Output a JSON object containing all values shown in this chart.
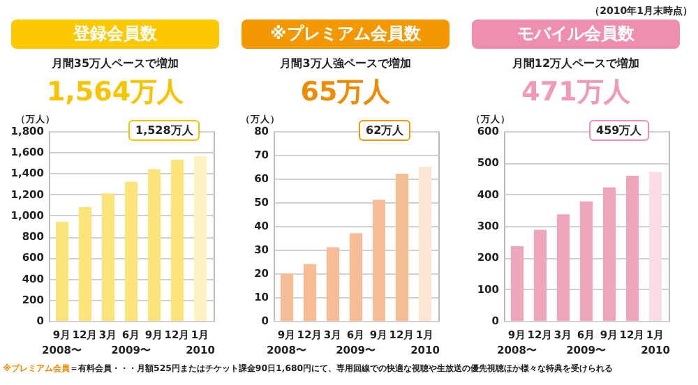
{
  "chart_data": [
    {
      "type": "bar",
      "title": "登録会員数",
      "subtitle": "月間35万人ペースで増加",
      "ylabel": "（万人）",
      "categories": [
        "9月\n2008〜",
        "12月",
        "3月",
        "6月\n2009〜",
        "9月",
        "12月",
        "1月\n2010"
      ],
      "values": [
        940,
        1080,
        1210,
        1320,
        1440,
        1528,
        1564
      ],
      "colors": [
        "#fce37a",
        "#fce37a",
        "#fce37a",
        "#fce37a",
        "#fce37a",
        "#fce37a",
        "#fdf3c2"
      ],
      "ylim": [
        0,
        1800
      ],
      "yticks": [
        0,
        200,
        400,
        600,
        800,
        {
          "value": 1000,
          "label": "1,000"
        },
        {
          "value": 1200,
          "label": "1,200"
        },
        {
          "value": 1400,
          "label": "1,400"
        },
        {
          "value": 1600,
          "label": "1,600"
        },
        {
          "value": 1800,
          "label": "1,800"
        }
      ],
      "grid": "y",
      "annotations": [
        "1,564万人",
        "1,528万人"
      ]
    },
    {
      "type": "bar",
      "title": "※プレミアム会員数",
      "subtitle": "月間3万人強ペースで増加",
      "ylabel": "（万人）",
      "categories": [
        "9月\n2008〜",
        "12月",
        "3月",
        "6月\n2009〜",
        "9月",
        "12月",
        "1月\n2010"
      ],
      "values": [
        20,
        24,
        31,
        37,
        51,
        62,
        65
      ],
      "colors": [
        "#f5bc96",
        "#f5bc96",
        "#f5bc96",
        "#f5bc96",
        "#f5bc96",
        "#f5bc96",
        "#fde7d4"
      ],
      "ylim": [
        0,
        80
      ],
      "yticks": [
        0,
        10,
        20,
        30,
        40,
        50,
        60,
        70,
        80
      ],
      "grid": "y",
      "annotations": [
        "65万人",
        "62万人",
        "※プレミアム会員",
        "＝有料会員・・・月額525円またはチケット課金90日1,680円にて、専用回線での快適な視聴や生放送の優先視聴ほか様々な特典を受けられる"
      ]
    },
    {
      "type": "bar",
      "title": "モバイル会員数",
      "subtitle": "月間12万人ペースで増加",
      "ylabel": "（万人）",
      "categories": [
        "9月\n2008〜",
        "12月",
        "3月",
        "6月\n2009〜",
        "9月",
        "12月",
        "1月\n2010"
      ],
      "values": [
        236,
        288,
        337,
        378,
        422,
        459,
        471
      ],
      "colors": [
        "#eea6bb",
        "#eea6bb",
        "#eea6bb",
        "#eea6bb",
        "#eea6bb",
        "#eea6bb",
        "#f9dde6"
      ],
      "ylim": [
        0,
        600
      ],
      "yticks": [
        0,
        100,
        200,
        300,
        400,
        500,
        600
      ],
      "grid": "y",
      "annotations": [
        "471万人",
        "459万人",
        "（2010年1月末時点）"
      ]
    }
  ]
}
